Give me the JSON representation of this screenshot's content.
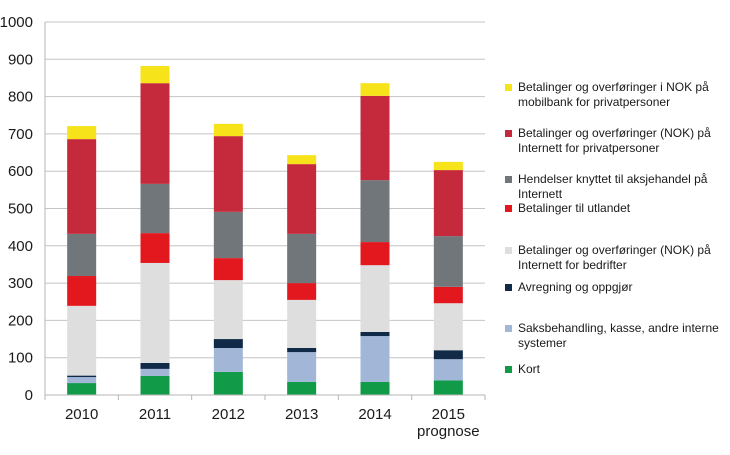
{
  "chart_data": {
    "type": "bar",
    "stacked": true,
    "title": "",
    "xlabel": "",
    "ylabel": "",
    "ylim": [
      0,
      1000
    ],
    "yticks": [
      0,
      100,
      200,
      300,
      400,
      500,
      600,
      700,
      800,
      900,
      1000
    ],
    "grid": true,
    "legend_position": "right",
    "categories": [
      "2010",
      "2011",
      "2012",
      "2013",
      "2014",
      "2015\nprognose"
    ],
    "series": [
      {
        "name": "Kort",
        "color": "#119a48",
        "values": [
          32,
          51,
          62,
          35,
          35,
          39
        ]
      },
      {
        "name": "Saksbehandling, kasse, andre interne\nsystemer",
        "color": "#a2b7d8",
        "values": [
          16,
          19,
          64,
          80,
          123,
          57
        ]
      },
      {
        "name": "Avregning og oppgjør",
        "color": "#102a48",
        "values": [
          4,
          16,
          24,
          11,
          11,
          24
        ]
      },
      {
        "name": "Betalinger og overføringer (NOK) på\nInternett for bedrifter",
        "color": "#dedede",
        "values": [
          187,
          268,
          158,
          129,
          179,
          126
        ]
      },
      {
        "name": "Betalinger til utlandet",
        "color": "#e3181e",
        "values": [
          80,
          80,
          59,
          45,
          62,
          44
        ]
      },
      {
        "name": "Hendelser knyttet til aksjehandel på\nInternett",
        "color": "#71767b",
        "values": [
          113,
          132,
          124,
          132,
          166,
          136
        ]
      },
      {
        "name": "Betalinger og overføringer (NOK) på\nInternett for privatpersoner",
        "color": "#c52a3c",
        "values": [
          254,
          270,
          203,
          187,
          226,
          177
        ]
      },
      {
        "name": "Betalinger og overføringer i NOK på\nmobilbank for privatpersoner",
        "color": "#f6e319",
        "values": [
          35,
          46,
          33,
          24,
          34,
          22
        ]
      }
    ],
    "legend_order": [
      7,
      6,
      5,
      4,
      3,
      2,
      1,
      0
    ]
  }
}
